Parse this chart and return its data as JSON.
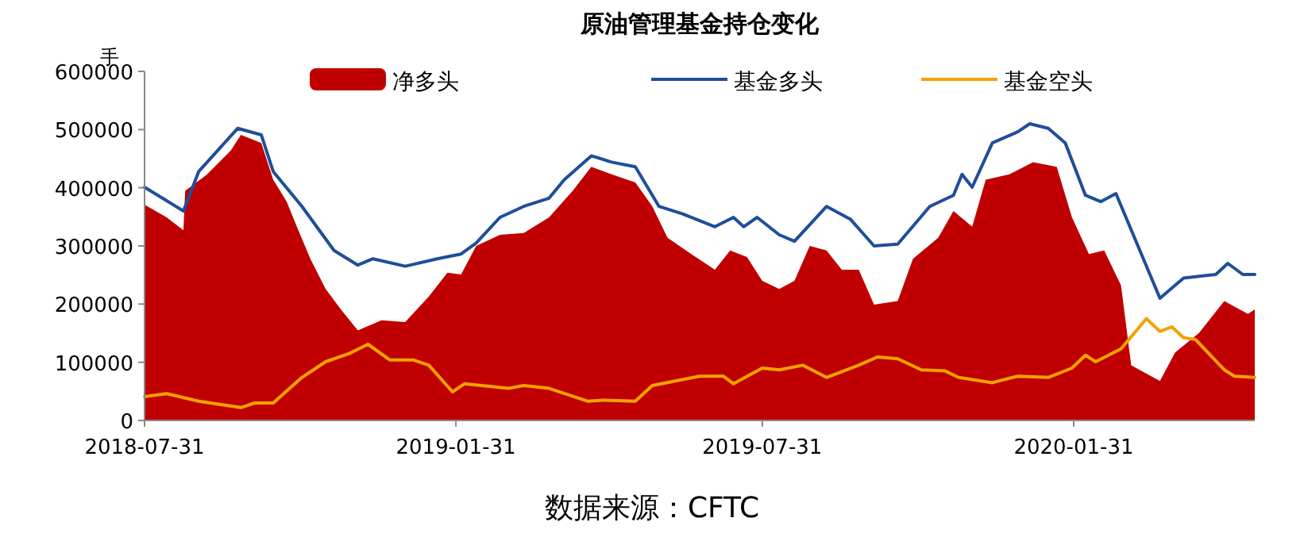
{
  "chart_data": {
    "type": "line",
    "title": "原油管理基金持仓变化",
    "ylabel": "手",
    "annotations": [
      "数据来源：CFTC"
    ],
    "xlim": [
      "2018-07-31",
      "2020-05-17"
    ],
    "xticks": [
      "2018-07-31",
      "2019-01-31",
      "2019-07-31",
      "2020-01-31"
    ],
    "ylim": [
      0,
      600000
    ],
    "yticks": [
      0,
      100000,
      200000,
      300000,
      400000,
      500000,
      600000
    ],
    "legend": "top",
    "grid": false,
    "series": [
      {
        "name": "净多头",
        "type": "area",
        "color": "#c00000",
        "x": [
          "2018-07-31",
          "2018-08-13",
          "2018-08-23",
          "2018-08-24",
          "2018-09-06",
          "2018-09-20",
          "2018-09-26",
          "2018-10-08",
          "2018-10-15",
          "2018-10-23",
          "2018-10-29",
          "2018-11-06",
          "2018-11-15",
          "2018-11-24",
          "2018-12-04",
          "2018-12-18",
          "2019-01-01",
          "2019-01-15",
          "2019-01-26",
          "2019-02-03",
          "2019-02-12",
          "2019-02-26",
          "2019-03-12",
          "2019-03-27",
          "2019-04-10",
          "2019-04-21",
          "2019-05-03",
          "2019-05-17",
          "2019-05-27",
          "2019-06-05",
          "2019-06-19",
          "2019-07-03",
          "2019-07-12",
          "2019-07-22",
          "2019-07-31",
          "2019-08-10",
          "2019-08-19",
          "2019-08-28",
          "2019-09-07",
          "2019-09-16",
          "2019-09-26",
          "2019-10-05",
          "2019-10-19",
          "2019-10-28",
          "2019-11-12",
          "2019-11-21",
          "2019-12-02",
          "2019-12-10",
          "2019-12-24",
          "2020-01-07",
          "2020-01-21",
          "2020-01-30",
          "2020-02-09",
          "2020-02-18",
          "2020-02-28",
          "2020-03-05",
          "2020-03-22",
          "2020-03-31",
          "2020-04-14",
          "2020-04-29",
          "2020-05-13",
          "2020-05-17"
        ],
        "values": [
          371000,
          349000,
          327000,
          395000,
          423000,
          464000,
          491000,
          477000,
          414000,
          376000,
          333000,
          278000,
          226000,
          191000,
          155000,
          172000,
          169000,
          213000,
          254000,
          251000,
          300000,
          319000,
          322000,
          349000,
          395000,
          436000,
          423000,
          409000,
          368000,
          314000,
          286000,
          259000,
          292000,
          281000,
          240000,
          226000,
          240000,
          300000,
          292000,
          259000,
          259000,
          199000,
          205000,
          278000,
          314000,
          360000,
          333000,
          414000,
          423000,
          444000,
          436000,
          349000,
          286000,
          292000,
          232000,
          95000,
          68000,
          117000,
          150000,
          205000,
          183000,
          191000
        ]
      },
      {
        "name": "基金多头",
        "color": "#1f4e9a",
        "x": [
          "2018-07-31",
          "2018-08-23",
          "2018-09-01",
          "2018-09-24",
          "2018-10-08",
          "2018-10-15",
          "2018-11-01",
          "2018-11-20",
          "2018-12-04",
          "2018-12-13",
          "2019-01-01",
          "2019-01-20",
          "2019-02-03",
          "2019-02-12",
          "2019-02-26",
          "2019-03-12",
          "2019-03-27",
          "2019-04-05",
          "2019-04-21",
          "2019-05-03",
          "2019-05-17",
          "2019-05-31",
          "2019-06-14",
          "2019-07-03",
          "2019-07-14",
          "2019-07-20",
          "2019-07-28",
          "2019-08-10",
          "2019-08-19",
          "2019-09-07",
          "2019-09-21",
          "2019-10-05",
          "2019-10-19",
          "2019-11-07",
          "2019-11-21",
          "2019-11-26",
          "2019-12-02",
          "2019-12-14",
          "2019-12-29",
          "2020-01-05",
          "2020-01-16",
          "2020-01-26",
          "2020-02-07",
          "2020-02-16",
          "2020-02-25",
          "2020-03-22",
          "2020-04-05",
          "2020-04-24",
          "2020-05-01",
          "2020-05-10",
          "2020-05-17"
        ],
        "values": [
          401000,
          360000,
          428000,
          502000,
          491000,
          428000,
          368000,
          292000,
          267000,
          278000,
          265000,
          278000,
          286000,
          305000,
          349000,
          368000,
          382000,
          414000,
          455000,
          444000,
          436000,
          368000,
          355000,
          333000,
          349000,
          333000,
          349000,
          319000,
          308000,
          368000,
          346000,
          300000,
          303000,
          368000,
          387000,
          423000,
          401000,
          477000,
          496000,
          510000,
          502000,
          477000,
          387000,
          376000,
          390000,
          210000,
          245000,
          251000,
          270000,
          251000,
          251000
        ]
      },
      {
        "name": "基金空头",
        "color": "#f5a200",
        "x": [
          "2018-07-31",
          "2018-08-13",
          "2018-09-01",
          "2018-09-15",
          "2018-09-26",
          "2018-10-04",
          "2018-10-15",
          "2018-11-01",
          "2018-11-15",
          "2018-11-29",
          "2018-12-10",
          "2018-12-23",
          "2019-01-06",
          "2019-01-15",
          "2019-01-29",
          "2019-02-05",
          "2019-03-03",
          "2019-03-12",
          "2019-03-27",
          "2019-04-19",
          "2019-04-28",
          "2019-05-17",
          "2019-05-27",
          "2019-06-24",
          "2019-07-08",
          "2019-07-14",
          "2019-07-31",
          "2019-08-10",
          "2019-08-24",
          "2019-09-07",
          "2019-09-26",
          "2019-10-07",
          "2019-10-19",
          "2019-11-02",
          "2019-11-16",
          "2019-11-24",
          "2019-12-14",
          "2019-12-29",
          "2020-01-16",
          "2020-01-30",
          "2020-02-07",
          "2020-02-13",
          "2020-02-28",
          "2020-03-14",
          "2020-03-22",
          "2020-03-29",
          "2020-04-05",
          "2020-04-12",
          "2020-04-29",
          "2020-05-05",
          "2020-05-17"
        ],
        "values": [
          41000,
          46000,
          33000,
          27000,
          22000,
          30000,
          30000,
          74000,
          101000,
          115000,
          131000,
          104000,
          104000,
          95000,
          49000,
          63000,
          55000,
          60000,
          55000,
          33000,
          35000,
          33000,
          60000,
          76000,
          76000,
          63000,
          90000,
          87000,
          95000,
          74000,
          95000,
          109000,
          106000,
          87000,
          85000,
          74000,
          65000,
          76000,
          74000,
          90000,
          112000,
          101000,
          123000,
          175000,
          153000,
          161000,
          142000,
          139000,
          87000,
          76000,
          74000
        ]
      }
    ]
  }
}
